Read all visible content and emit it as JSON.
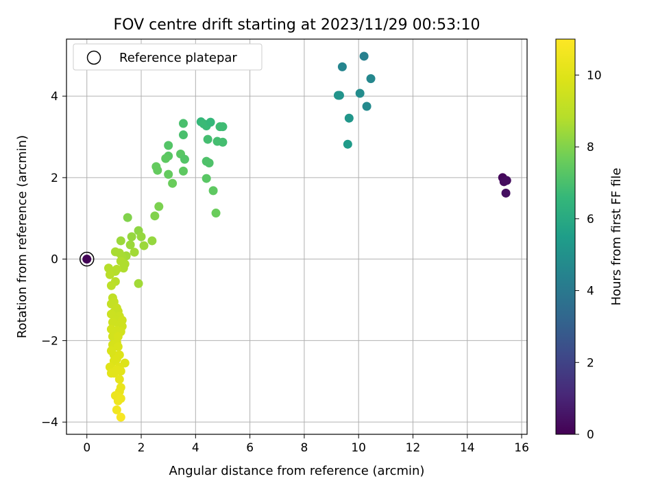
{
  "chart_data": {
    "type": "scatter",
    "title": "FOV centre drift starting at 2023/11/29 00:53:10",
    "xlabel": "Angular distance from reference (arcmin)",
    "ylabel": "Rotation from reference (arcmin)",
    "xlim": [
      -0.75,
      16.2
    ],
    "ylim": [
      -4.3,
      5.4
    ],
    "xticks": [
      0,
      2,
      4,
      6,
      8,
      10,
      12,
      14,
      16
    ],
    "xtick_labels": [
      "0",
      "2",
      "4",
      "6",
      "8",
      "10",
      "12",
      "14",
      "16"
    ],
    "yticks": [
      -4,
      -2,
      0,
      2,
      4
    ],
    "ytick_labels": [
      "−4",
      "−2",
      "0",
      "2",
      "4"
    ],
    "grid": true,
    "legend": {
      "position": "top-left",
      "entries": [
        "Reference platepar"
      ]
    },
    "colorbar": {
      "label": "Hours from first FF file",
      "range": [
        0,
        11
      ],
      "ticks": [
        0,
        2,
        4,
        6,
        8,
        10
      ],
      "tick_labels": [
        "0",
        "2",
        "4",
        "6",
        "8",
        "10"
      ],
      "colormap": "viridis"
    },
    "reference_point": {
      "x": 0,
      "y": 0,
      "h": 0.1
    },
    "points": [
      {
        "x": 15.3,
        "y": 2.0,
        "h": 0.2
      },
      {
        "x": 15.35,
        "y": 1.9,
        "h": 0.3
      },
      {
        "x": 15.45,
        "y": 1.93,
        "h": 0.35
      },
      {
        "x": 15.42,
        "y": 1.62,
        "h": 0.4
      },
      {
        "x": 10.2,
        "y": 4.98,
        "h": 4.3
      },
      {
        "x": 9.4,
        "y": 4.72,
        "h": 4.5
      },
      {
        "x": 10.45,
        "y": 4.43,
        "h": 4.6
      },
      {
        "x": 10.05,
        "y": 4.07,
        "h": 4.8
      },
      {
        "x": 10.3,
        "y": 3.75,
        "h": 4.7
      },
      {
        "x": 9.3,
        "y": 4.02,
        "h": 5.0
      },
      {
        "x": 9.25,
        "y": 4.02,
        "h": 5.1
      },
      {
        "x": 9.65,
        "y": 3.46,
        "h": 5.2
      },
      {
        "x": 9.6,
        "y": 2.82,
        "h": 5.4
      },
      {
        "x": 4.2,
        "y": 3.37,
        "h": 6.6
      },
      {
        "x": 4.3,
        "y": 3.32,
        "h": 6.7
      },
      {
        "x": 4.4,
        "y": 3.27,
        "h": 6.7
      },
      {
        "x": 4.55,
        "y": 3.36,
        "h": 6.6
      },
      {
        "x": 4.9,
        "y": 3.25,
        "h": 6.8
      },
      {
        "x": 5.0,
        "y": 3.25,
        "h": 6.8
      },
      {
        "x": 3.55,
        "y": 3.33,
        "h": 7.0
      },
      {
        "x": 4.45,
        "y": 2.94,
        "h": 6.9
      },
      {
        "x": 4.8,
        "y": 2.89,
        "h": 6.9
      },
      {
        "x": 5.0,
        "y": 2.87,
        "h": 6.9
      },
      {
        "x": 3.55,
        "y": 3.05,
        "h": 7.0
      },
      {
        "x": 3.0,
        "y": 2.79,
        "h": 7.2
      },
      {
        "x": 3.45,
        "y": 2.58,
        "h": 7.3
      },
      {
        "x": 3.6,
        "y": 2.45,
        "h": 7.2
      },
      {
        "x": 3.0,
        "y": 2.53,
        "h": 7.3
      },
      {
        "x": 2.9,
        "y": 2.47,
        "h": 7.4
      },
      {
        "x": 4.4,
        "y": 2.4,
        "h": 7.1
      },
      {
        "x": 4.5,
        "y": 2.36,
        "h": 7.1
      },
      {
        "x": 2.55,
        "y": 2.27,
        "h": 7.5
      },
      {
        "x": 2.6,
        "y": 2.18,
        "h": 7.5
      },
      {
        "x": 3.55,
        "y": 2.16,
        "h": 7.4
      },
      {
        "x": 3.0,
        "y": 2.08,
        "h": 7.5
      },
      {
        "x": 4.4,
        "y": 1.98,
        "h": 7.3
      },
      {
        "x": 3.15,
        "y": 1.86,
        "h": 7.6
      },
      {
        "x": 4.65,
        "y": 1.68,
        "h": 7.4
      },
      {
        "x": 2.65,
        "y": 1.29,
        "h": 7.9
      },
      {
        "x": 2.5,
        "y": 1.06,
        "h": 8.0
      },
      {
        "x": 4.75,
        "y": 1.13,
        "h": 7.6
      },
      {
        "x": 1.5,
        "y": 1.02,
        "h": 8.0
      },
      {
        "x": 1.9,
        "y": 0.7,
        "h": 8.2
      },
      {
        "x": 1.65,
        "y": 0.55,
        "h": 8.3
      },
      {
        "x": 2.0,
        "y": 0.55,
        "h": 8.3
      },
      {
        "x": 1.25,
        "y": 0.45,
        "h": 8.4
      },
      {
        "x": 2.4,
        "y": 0.45,
        "h": 8.3
      },
      {
        "x": 1.6,
        "y": 0.35,
        "h": 8.4
      },
      {
        "x": 2.1,
        "y": 0.33,
        "h": 8.4
      },
      {
        "x": 1.05,
        "y": 0.18,
        "h": 8.6
      },
      {
        "x": 1.2,
        "y": 0.15,
        "h": 8.6
      },
      {
        "x": 1.75,
        "y": 0.17,
        "h": 8.5
      },
      {
        "x": 1.45,
        "y": 0.08,
        "h": 8.5
      },
      {
        "x": 1.3,
        "y": 0.05,
        "h": 8.6
      },
      {
        "x": 1.25,
        "y": -0.05,
        "h": 8.7
      },
      {
        "x": 1.4,
        "y": -0.12,
        "h": 8.7
      },
      {
        "x": 1.35,
        "y": -0.22,
        "h": 8.7
      },
      {
        "x": 1.1,
        "y": -0.25,
        "h": 8.8
      },
      {
        "x": 1.05,
        "y": -0.3,
        "h": 8.8
      },
      {
        "x": 0.8,
        "y": -0.22,
        "h": 8.8
      },
      {
        "x": 0.9,
        "y": -0.32,
        "h": 8.8
      },
      {
        "x": 0.85,
        "y": -0.38,
        "h": 8.9
      },
      {
        "x": 1.05,
        "y": -0.55,
        "h": 8.9
      },
      {
        "x": 0.9,
        "y": -0.65,
        "h": 9.0
      },
      {
        "x": 1.9,
        "y": -0.6,
        "h": 8.5
      },
      {
        "x": 0.95,
        "y": -0.95,
        "h": 9.1
      },
      {
        "x": 1.0,
        "y": -1.05,
        "h": 9.2
      },
      {
        "x": 0.9,
        "y": -1.1,
        "h": 9.2
      },
      {
        "x": 1.1,
        "y": -1.2,
        "h": 9.3
      },
      {
        "x": 1.15,
        "y": -1.28,
        "h": 9.3
      },
      {
        "x": 1.0,
        "y": -1.3,
        "h": 9.3
      },
      {
        "x": 0.9,
        "y": -1.35,
        "h": 9.4
      },
      {
        "x": 1.2,
        "y": -1.4,
        "h": 9.4
      },
      {
        "x": 1.05,
        "y": -1.48,
        "h": 9.4
      },
      {
        "x": 1.3,
        "y": -1.5,
        "h": 9.5
      },
      {
        "x": 0.95,
        "y": -1.55,
        "h": 9.5
      },
      {
        "x": 1.2,
        "y": -1.62,
        "h": 9.5
      },
      {
        "x": 1.3,
        "y": -1.65,
        "h": 9.5
      },
      {
        "x": 0.9,
        "y": -1.72,
        "h": 9.6
      },
      {
        "x": 1.1,
        "y": -1.75,
        "h": 9.6
      },
      {
        "x": 1.25,
        "y": -1.78,
        "h": 9.6
      },
      {
        "x": 0.95,
        "y": -1.9,
        "h": 9.6
      },
      {
        "x": 1.15,
        "y": -1.9,
        "h": 9.7
      },
      {
        "x": 1.1,
        "y": -2.05,
        "h": 9.7
      },
      {
        "x": 0.95,
        "y": -2.1,
        "h": 9.7
      },
      {
        "x": 1.15,
        "y": -2.15,
        "h": 9.8
      },
      {
        "x": 0.9,
        "y": -2.25,
        "h": 9.8
      },
      {
        "x": 1.0,
        "y": -2.35,
        "h": 9.8
      },
      {
        "x": 1.2,
        "y": -2.35,
        "h": 9.9
      },
      {
        "x": 1.1,
        "y": -2.45,
        "h": 9.9
      },
      {
        "x": 1.0,
        "y": -2.5,
        "h": 9.9
      },
      {
        "x": 1.4,
        "y": -2.55,
        "h": 9.9
      },
      {
        "x": 0.85,
        "y": -2.65,
        "h": 10.0
      },
      {
        "x": 1.2,
        "y": -2.65,
        "h": 10.0
      },
      {
        "x": 0.95,
        "y": -2.7,
        "h": 10.0
      },
      {
        "x": 1.1,
        "y": -2.72,
        "h": 10.1
      },
      {
        "x": 1.25,
        "y": -2.75,
        "h": 10.1
      },
      {
        "x": 0.9,
        "y": -2.8,
        "h": 10.1
      },
      {
        "x": 1.0,
        "y": -2.8,
        "h": 10.1
      },
      {
        "x": 1.2,
        "y": -2.95,
        "h": 10.2
      },
      {
        "x": 1.25,
        "y": -3.15,
        "h": 10.3
      },
      {
        "x": 1.2,
        "y": -3.25,
        "h": 10.3
      },
      {
        "x": 1.05,
        "y": -3.35,
        "h": 10.4
      },
      {
        "x": 1.15,
        "y": -3.38,
        "h": 10.4
      },
      {
        "x": 1.25,
        "y": -3.42,
        "h": 10.5
      },
      {
        "x": 1.15,
        "y": -3.48,
        "h": 10.5
      },
      {
        "x": 1.1,
        "y": -3.7,
        "h": 10.6
      },
      {
        "x": 1.25,
        "y": -3.88,
        "h": 10.8
      }
    ]
  }
}
